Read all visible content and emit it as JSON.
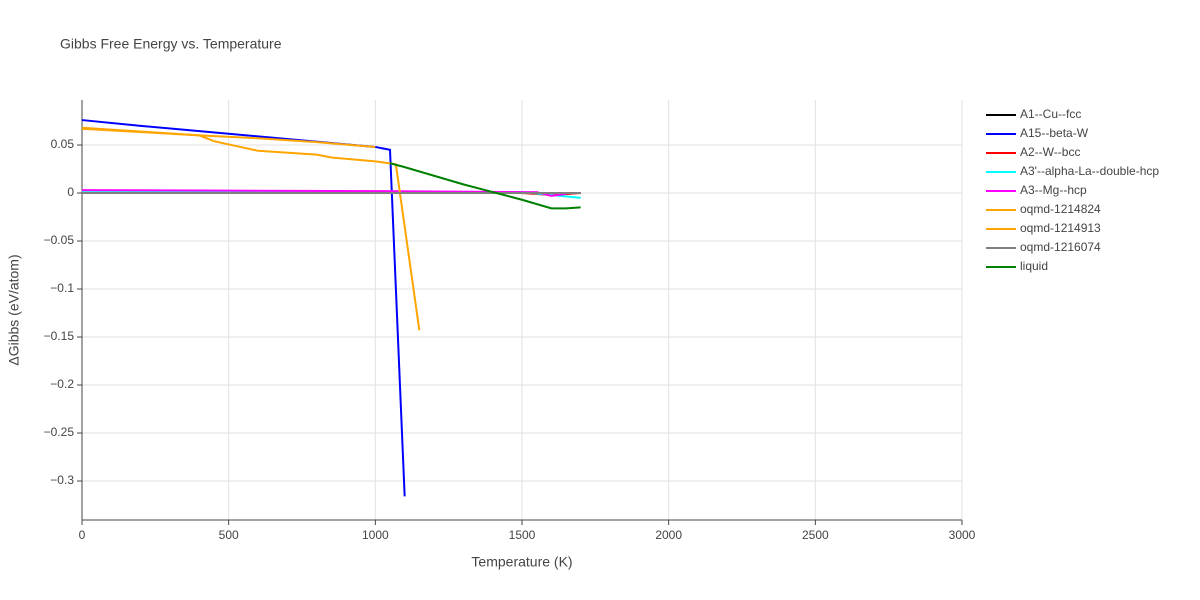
{
  "chart_data": {
    "type": "line",
    "title": "Gibbs Free Energy vs. Temperature",
    "x_label": "Temperature (K)",
    "y_label": "ΔGibbs (eV/atom)",
    "xlim": [
      0,
      3000
    ],
    "xticks": [
      0,
      500,
      1000,
      1500,
      2000,
      2500,
      3000
    ],
    "ylim": [
      -0.3406,
      0.0969
    ],
    "yticks": [
      {
        "value": -0.3,
        "label": "−0.3"
      },
      {
        "value": -0.25,
        "label": "−0.25"
      },
      {
        "value": -0.2,
        "label": "−0.2"
      },
      {
        "value": -0.15,
        "label": "−0.15"
      },
      {
        "value": -0.1,
        "label": "−0.1"
      },
      {
        "value": -0.05,
        "label": "−0.05"
      },
      0,
      0.05
    ],
    "grid": true,
    "series": [
      {
        "name": "A1--Cu--fcc",
        "color": "#000000",
        "x": [
          0,
          500,
          1000,
          1500,
          1700
        ],
        "values": [
          0,
          0,
          0,
          0,
          0
        ]
      },
      {
        "name": "A15--beta-W",
        "color": "#0000ff",
        "x": [
          0,
          200,
          600,
          1000,
          1050,
          1100
        ],
        "values": [
          0.076,
          0.07,
          0.059,
          0.048,
          0.045,
          -0.316
        ]
      },
      {
        "name": "A2--W--bcc",
        "color": "#ff0000",
        "x": [
          0,
          500,
          1000,
          1500,
          1600,
          1700
        ],
        "values": [
          0,
          0,
          0,
          0,
          -0.002,
          0
        ]
      },
      {
        "name": "A3'--alpha-La--double-hcp",
        "color": "#00ffff",
        "x": [
          0,
          500,
          1000,
          1500,
          1600,
          1700
        ],
        "values": [
          0.001,
          0.001,
          0.001,
          0.001,
          -0.002,
          -0.005
        ]
      },
      {
        "name": "A3--Mg--hcp",
        "color": "#ff00ff",
        "x": [
          0,
          500,
          1000,
          1500,
          1550,
          1600,
          1650
        ],
        "values": [
          0.003,
          0.0025,
          0.002,
          0.001,
          0.001,
          -0.003,
          -0.001
        ]
      },
      {
        "name": "oqmd-1214824",
        "color": "#ffa500",
        "x": [
          0,
          400,
          450,
          600,
          800,
          850,
          1000,
          1070,
          1150
        ],
        "values": [
          0.068,
          0.06,
          0.054,
          0.044,
          0.04,
          0.037,
          0.033,
          0.03,
          -0.143
        ]
      },
      {
        "name": "oqmd-1214913",
        "color": "#ffa500",
        "x": [
          0,
          400,
          600,
          800,
          1000
        ],
        "values": [
          0.067,
          0.06,
          0.057,
          0.053,
          0.048
        ]
      },
      {
        "name": "oqmd-1216074",
        "color": "#808080",
        "x": [
          0,
          500,
          1000,
          1500,
          1700
        ],
        "values": [
          0,
          0,
          0,
          0,
          0
        ]
      },
      {
        "name": "liquid",
        "color": "#008000",
        "x": [
          1050,
          1100,
          1200,
          1300,
          1400,
          1500,
          1600,
          1650,
          1700
        ],
        "values": [
          0.031,
          0.027,
          0.018,
          0.009,
          0.001,
          -0.007,
          -0.016,
          -0.016,
          -0.015
        ]
      }
    ]
  }
}
